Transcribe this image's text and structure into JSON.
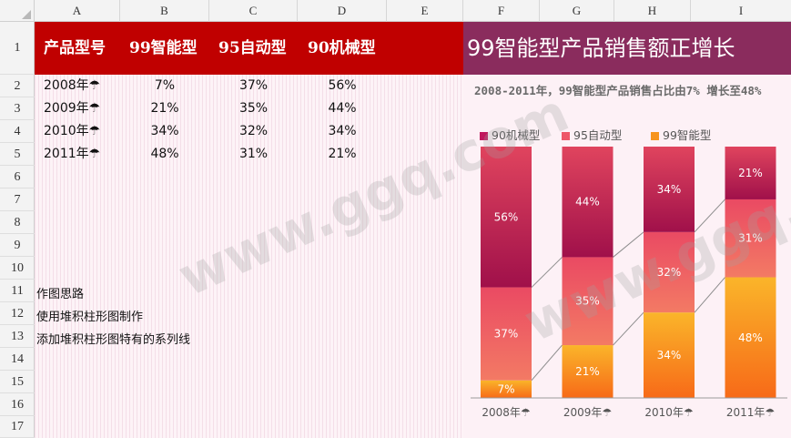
{
  "columns": [
    "A",
    "B",
    "C",
    "D",
    "E",
    "F",
    "G",
    "H",
    "I"
  ],
  "rows": [
    "1",
    "2",
    "3",
    "4",
    "5",
    "6",
    "7",
    "8",
    "9",
    "10",
    "11",
    "12",
    "13",
    "14",
    "15",
    "16",
    "17"
  ],
  "table": {
    "headers": [
      "产品型号",
      "99智能型",
      "95自动型",
      "90机械型"
    ],
    "rows": [
      {
        "year": "2008年",
        "v99": "7%",
        "v95": "37%",
        "v90": "56%"
      },
      {
        "year": "2009年",
        "v99": "21%",
        "v95": "35%",
        "v90": "44%"
      },
      {
        "year": "2010年",
        "v99": "34%",
        "v95": "32%",
        "v90": "34%"
      },
      {
        "year": "2011年",
        "v99": "48%",
        "v95": "31%",
        "v90": "21%"
      }
    ]
  },
  "notes": [
    "作图思路",
    "使用堆积柱形图制作",
    "添加堆积柱形图特有的系列线"
  ],
  "watermark": "www.ggq.com",
  "chart_data": {
    "type": "bar",
    "stacked": true,
    "title": "99智能型产品销售额正增长",
    "subtitle": "2008-2011年，99智能型产品销售占比由7% 增长至48%",
    "categories": [
      "2008年",
      "2009年",
      "2010年",
      "2011年"
    ],
    "series": [
      {
        "name": "99智能型",
        "values": [
          7,
          21,
          34,
          48
        ],
        "color": "#f7941d"
      },
      {
        "name": "95自动型",
        "values": [
          37,
          35,
          32,
          31
        ],
        "color": "#ee5768"
      },
      {
        "name": "90机械型",
        "values": [
          56,
          44,
          34,
          21
        ],
        "color": "#c0175c"
      }
    ],
    "legend_order": [
      "90机械型",
      "95自动型",
      "99智能型"
    ],
    "data_labels": true,
    "series_lines": true,
    "legend": "top-left",
    "ylim": [
      0,
      100
    ],
    "grid": false
  }
}
